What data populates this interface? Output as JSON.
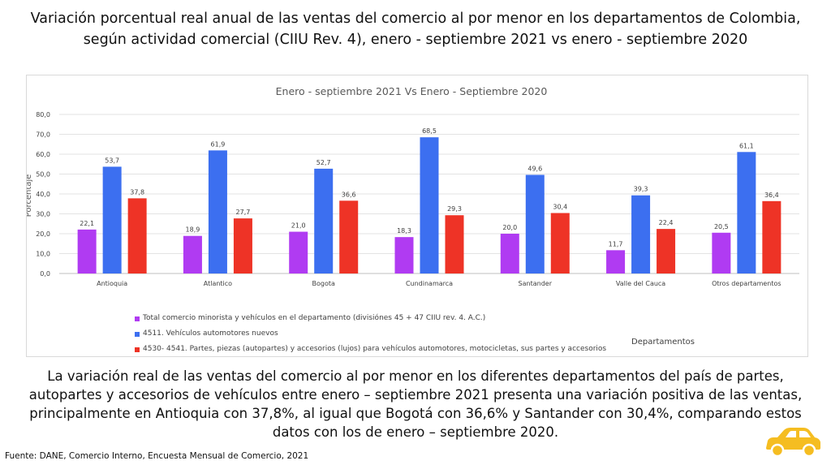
{
  "title": "Variación porcentual real anual de las ventas del comercio al por menor en los departamentos de Colombia, según actividad comercial (CIIU Rev. 4), enero - septiembre 2021 vs enero - septiembre 2020",
  "chart_data": {
    "type": "bar",
    "title": "Enero - septiembre 2021 Vs Enero - Septiembre 2020",
    "xlabel": "Departamentos",
    "ylabel": "Porcentaje",
    "ylim": [
      0,
      80
    ],
    "yticks": [
      "0,0",
      "10,0",
      "20,0",
      "30,0",
      "40,0",
      "50,0",
      "60,0",
      "70,0",
      "80,0"
    ],
    "grid": true,
    "legend_position": "bottom-left",
    "categories": [
      "Antioquia",
      "Atlantico",
      "Bogota",
      "Cundinamarca",
      "Santander",
      "Valle del Cauca",
      "Otros departamentos"
    ],
    "series": [
      {
        "name": "Total comercio minorista y vehículos en el departamento (divisiónes 45 + 47  CIIU rev. 4. A.C.)",
        "color": "#b03bf2",
        "values": [
          22.1,
          18.9,
          21.0,
          18.3,
          20.0,
          11.7,
          20.5
        ],
        "labels": [
          "22,1",
          "18,9",
          "21,0",
          "18,3",
          "20,0",
          "11,7",
          "20,5"
        ]
      },
      {
        "name": "4511. Vehículos automotores nuevos",
        "color": "#3c6ff0",
        "values": [
          53.7,
          61.9,
          52.7,
          68.5,
          49.6,
          39.3,
          61.1
        ],
        "labels": [
          "53,7",
          "61,9",
          "52,7",
          "68,5",
          "49,6",
          "39,3",
          "61,1"
        ]
      },
      {
        "name": "4530- 4541. Partes, piezas (autopartes) y accesorios (lujos) para vehículos automotores, motocicletas, sus partes y accesorios",
        "color": "#ee3326",
        "values": [
          37.8,
          27.7,
          36.6,
          29.3,
          30.4,
          22.4,
          36.4
        ],
        "labels": [
          "37,8",
          "27,7",
          "36,6",
          "29,3",
          "30,4",
          "22,4",
          "36,4"
        ]
      }
    ]
  },
  "paragraph": "La variación real de las ventas del comercio al por menor en los diferentes departamentos del país de partes, autopartes y accesorios de vehículos entre enero – septiembre 2021 presenta una variación positiva de las ventas, principalmente en Antioquia con 37,8%, al igual que Bogotá con 36,6% y Santander con 30,4%, comparando estos datos con los de enero – septiembre 2020.",
  "source": "Fuente: DANE, Comercio Interno, Encuesta Mensual de Comercio, 2021",
  "icons": {
    "car": "car-icon"
  },
  "colors": {
    "car": "#f5bd21"
  }
}
